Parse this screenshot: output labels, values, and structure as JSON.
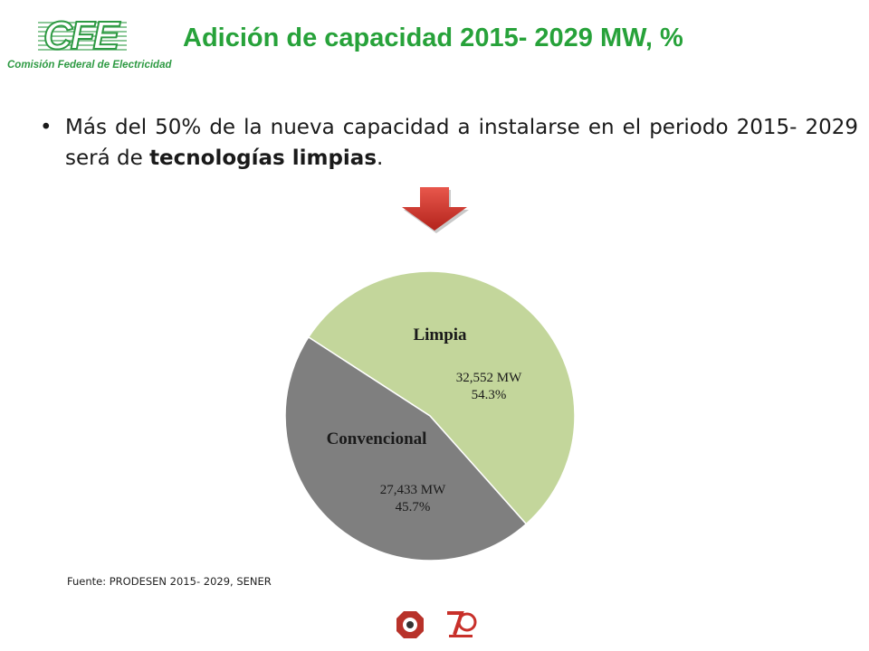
{
  "header": {
    "logo_word": "CFE",
    "logo_caption": "Comisión Federal de Electricidad",
    "title": "Adición de capacidad 2015- 2029 MW, %"
  },
  "bullet": {
    "text_before": "Más del 50% de la nueva capacidad a instalarse en el periodo 2015- 2029 será de ",
    "text_bold": "tecnologías limpias",
    "text_after": "."
  },
  "colors": {
    "title": "#27a23a",
    "logo": "#2e9a43",
    "arrow": "#d9332b",
    "limpia": "#c3d69b",
    "convencional": "#7f7f7f"
  },
  "chart_data": {
    "type": "pie",
    "title": "",
    "slices": [
      {
        "name": "Limpia",
        "value_mw": 32552,
        "value_label": "32,552 MW",
        "percent": 54.3,
        "percent_label": "54.3%",
        "color": "#c3d69b"
      },
      {
        "name": "Convencional",
        "value_mw": 27433,
        "value_label": "27,433 MW",
        "percent": 45.7,
        "percent_label": "45.7%",
        "color": "#7f7f7f"
      }
    ]
  },
  "source": "Fuente: PRODESEN 2015- 2029, SENER"
}
